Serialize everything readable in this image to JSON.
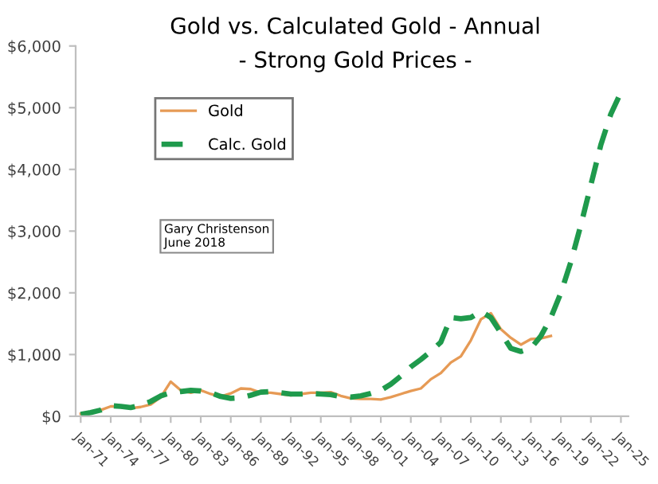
{
  "chart_data": {
    "type": "line",
    "title": "Gold vs. Calculated Gold - Annual",
    "subtitle": "- Strong Gold Prices -",
    "annotations": [
      "Gary Christenson\nJune 2018"
    ],
    "series": [
      {
        "name": "Gold",
        "color": "#e69a55",
        "line_style": "solid",
        "x": [
          "1971-01",
          "1972-01",
          "1973-01",
          "1974-01",
          "1975-01",
          "1976-01",
          "1977-01",
          "1978-01",
          "1979-01",
          "1980-01",
          "1981-01",
          "1982-01",
          "1983-01",
          "1984-01",
          "1985-01",
          "1986-01",
          "1987-01",
          "1988-01",
          "1989-01",
          "1990-01",
          "1991-01",
          "1992-01",
          "1993-01",
          "1994-01",
          "1995-01",
          "1996-01",
          "1997-01",
          "1998-01",
          "1999-01",
          "2000-01",
          "2001-01",
          "2002-01",
          "2003-01",
          "2004-01",
          "2005-01",
          "2006-01",
          "2007-01",
          "2008-01",
          "2009-01",
          "2010-01",
          "2011-01",
          "2012-01",
          "2013-01",
          "2014-01",
          "2015-01",
          "2016-01",
          "2017-01",
          "2018-01"
        ],
        "values": [
          40,
          60,
          100,
          160,
          160,
          130,
          150,
          190,
          310,
          560,
          420,
          380,
          420,
          360,
          320,
          370,
          450,
          440,
          380,
          380,
          360,
          340,
          360,
          380,
          380,
          390,
          330,
          290,
          280,
          280,
          270,
          310,
          360,
          410,
          450,
          600,
          700,
          870,
          970,
          1230,
          1570,
          1670,
          1410,
          1270,
          1160,
          1250,
          1260,
          1300
        ]
      },
      {
        "name": "Calc. Gold",
        "color": "#1f9a4c",
        "line_style": "dashed",
        "x": [
          "1971-01",
          "1972-01",
          "1973-01",
          "1974-01",
          "1975-01",
          "1976-01",
          "1977-01",
          "1978-01",
          "1979-01",
          "1980-01",
          "1981-01",
          "1982-01",
          "1983-01",
          "1984-01",
          "1985-01",
          "1986-01",
          "1987-01",
          "1988-01",
          "1989-01",
          "1990-01",
          "1991-01",
          "1992-01",
          "1993-01",
          "1994-01",
          "1995-01",
          "1996-01",
          "1997-01",
          "1998-01",
          "1999-01",
          "2000-01",
          "2001-01",
          "2002-01",
          "2003-01",
          "2004-01",
          "2005-01",
          "2006-01",
          "2007-01",
          "2008-01",
          "2009-01",
          "2010-01",
          "2011-01",
          "2012-01",
          "2013-01",
          "2014-01",
          "2015-01",
          "2016-01",
          "2017-01",
          "2018-01",
          "2019-01",
          "2020-01",
          "2021-01",
          "2022-01",
          "2023-01",
          "2024-01",
          "2025-01"
        ],
        "values": [
          30,
          60,
          100,
          170,
          160,
          140,
          180,
          240,
          330,
          380,
          400,
          420,
          410,
          380,
          320,
          290,
          300,
          340,
          390,
          400,
          380,
          360,
          360,
          370,
          360,
          350,
          320,
          310,
          330,
          370,
          420,
          520,
          650,
          800,
          920,
          1050,
          1200,
          1600,
          1580,
          1600,
          1700,
          1600,
          1350,
          1100,
          1050,
          1100,
          1300,
          1600,
          2000,
          2500,
          3100,
          3750,
          4400,
          4900,
          5250
        ]
      }
    ],
    "xlim": [
      "1970-07",
      "2025-10"
    ],
    "xticks": [
      {
        "value": "1971-01",
        "label": "Jan-71"
      },
      {
        "value": "1974-01",
        "label": "Jan-74"
      },
      {
        "value": "1977-01",
        "label": "Jan-77"
      },
      {
        "value": "1980-01",
        "label": "Jan-80"
      },
      {
        "value": "1983-01",
        "label": "Jan-83"
      },
      {
        "value": "1986-01",
        "label": "Jan-86"
      },
      {
        "value": "1989-01",
        "label": "Jan-89"
      },
      {
        "value": "1992-01",
        "label": "Jan-92"
      },
      {
        "value": "1995-01",
        "label": "Jan-95"
      },
      {
        "value": "1998-01",
        "label": "Jan-98"
      },
      {
        "value": "2001-01",
        "label": "Jan-01"
      },
      {
        "value": "2004-01",
        "label": "Jan-04"
      },
      {
        "value": "2007-01",
        "label": "Jan-07"
      },
      {
        "value": "2010-01",
        "label": "Jan-10"
      },
      {
        "value": "2013-01",
        "label": "Jan-13"
      },
      {
        "value": "2016-01",
        "label": "Jan-16"
      },
      {
        "value": "2019-01",
        "label": "Jan-19"
      },
      {
        "value": "2022-01",
        "label": "Jan-22"
      },
      {
        "value": "2025-01",
        "label": "Jan-25"
      }
    ],
    "ylim": [
      0,
      6000
    ],
    "yticks": [
      {
        "value": 0,
        "label": "$0"
      },
      {
        "value": 1000,
        "label": "$1,000"
      },
      {
        "value": 2000,
        "label": "$2,000"
      },
      {
        "value": 3000,
        "label": "$3,000"
      },
      {
        "value": 4000,
        "label": "$4,000"
      },
      {
        "value": 5000,
        "label": "$5,000"
      },
      {
        "value": 6000,
        "label": "$6,000"
      }
    ],
    "grid": false,
    "legend": "top left",
    "marker": "none"
  }
}
